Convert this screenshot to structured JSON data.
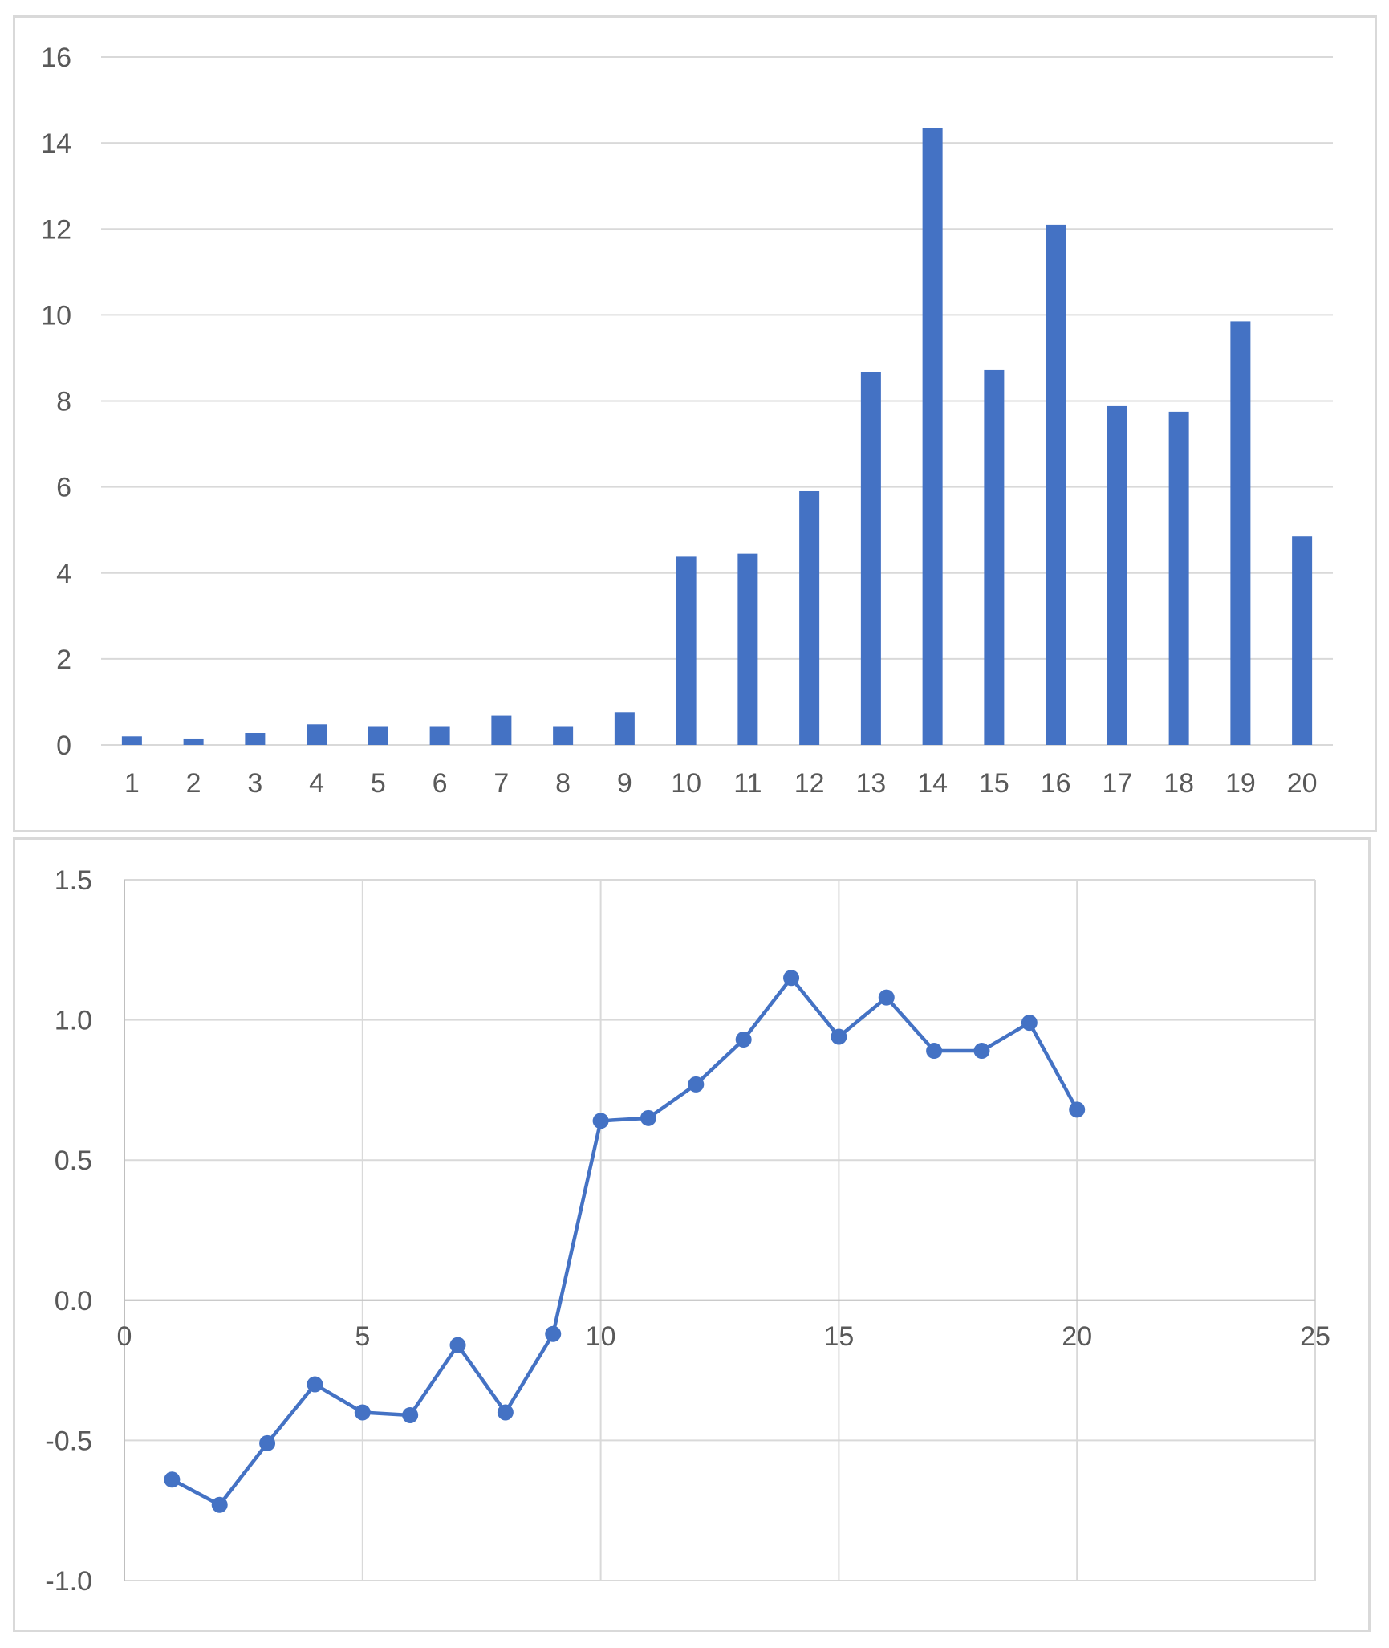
{
  "chart_data": [
    {
      "type": "bar",
      "categories": [
        "1",
        "2",
        "3",
        "4",
        "5",
        "6",
        "7",
        "8",
        "9",
        "10",
        "11",
        "12",
        "13",
        "14",
        "15",
        "16",
        "17",
        "18",
        "19",
        "20"
      ],
      "values": [
        0.2,
        0.15,
        0.28,
        0.48,
        0.42,
        0.42,
        0.68,
        0.42,
        0.76,
        4.38,
        4.45,
        5.9,
        8.68,
        14.35,
        8.72,
        12.1,
        7.88,
        7.75,
        9.85,
        4.85
      ],
      "ylim": [
        0,
        16
      ],
      "yticks": [
        "0",
        "2",
        "4",
        "6",
        "8",
        "10",
        "12",
        "14",
        "16"
      ],
      "color": "#4472c4",
      "grid": true
    },
    {
      "type": "scatter",
      "x": [
        1,
        2,
        3,
        4,
        5,
        6,
        7,
        8,
        9,
        10,
        11,
        12,
        13,
        14,
        15,
        16,
        17,
        18,
        19,
        20
      ],
      "y": [
        -0.64,
        -0.73,
        -0.51,
        -0.3,
        -0.4,
        -0.41,
        -0.16,
        -0.4,
        -0.12,
        0.64,
        0.65,
        0.77,
        0.93,
        1.15,
        0.94,
        1.08,
        0.89,
        0.89,
        0.99,
        0.68
      ],
      "xlim": [
        0,
        25
      ],
      "ylim": [
        -1,
        1.5
      ],
      "xticks": [
        "0",
        "5",
        "10",
        "15",
        "20",
        "25"
      ],
      "yticks": [
        "-1.0",
        "-0.5",
        "0.0",
        "0.5",
        "1.0",
        "1.5"
      ],
      "color": "#4472c4",
      "grid": true,
      "lines": true,
      "markers": true
    }
  ]
}
